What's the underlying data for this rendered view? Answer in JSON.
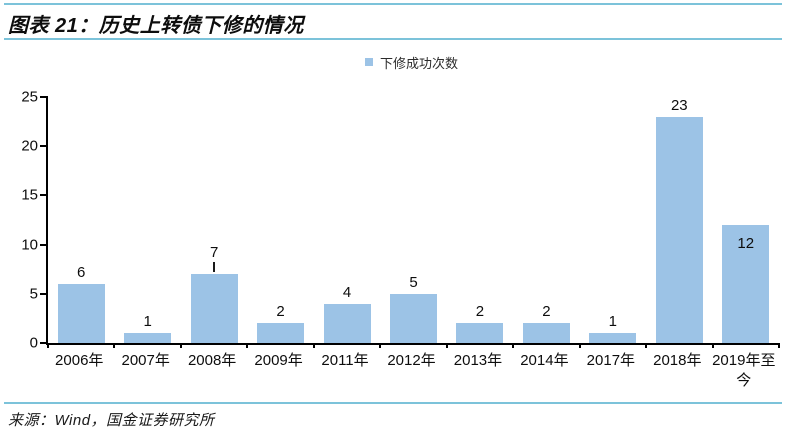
{
  "header": {
    "title": "图表 21：历史上转债下修的情况"
  },
  "legend": {
    "label": "下修成功次数"
  },
  "footer": {
    "source": "来源：Wind，国金证券研究所"
  },
  "colors": {
    "bar": "#9CC3E6",
    "rule": "#7CC3DA",
    "axis": "#000000",
    "label_text": "#0D0D0D"
  },
  "chart_data": {
    "type": "bar",
    "title": "图表 21：历史上转债下修的情况",
    "categories": [
      "2006年",
      "2007年",
      "2008年",
      "2009年",
      "2011年",
      "2012年",
      "2013年",
      "2014年",
      "2017年",
      "2018年",
      "2019年至今"
    ],
    "values": [
      6,
      1,
      7,
      2,
      4,
      5,
      2,
      2,
      1,
      23,
      12
    ],
    "series_name": "下修成功次数",
    "xlabel": "",
    "ylabel": "",
    "ylim": [
      0,
      25
    ],
    "yticks": [
      0,
      5,
      10,
      15,
      20,
      25
    ],
    "grid": false,
    "legend_position": "top-center",
    "data_labels": true,
    "label_hints": {
      "leader_line_category": "2008年",
      "inside_label_category": "2019年至今"
    }
  }
}
